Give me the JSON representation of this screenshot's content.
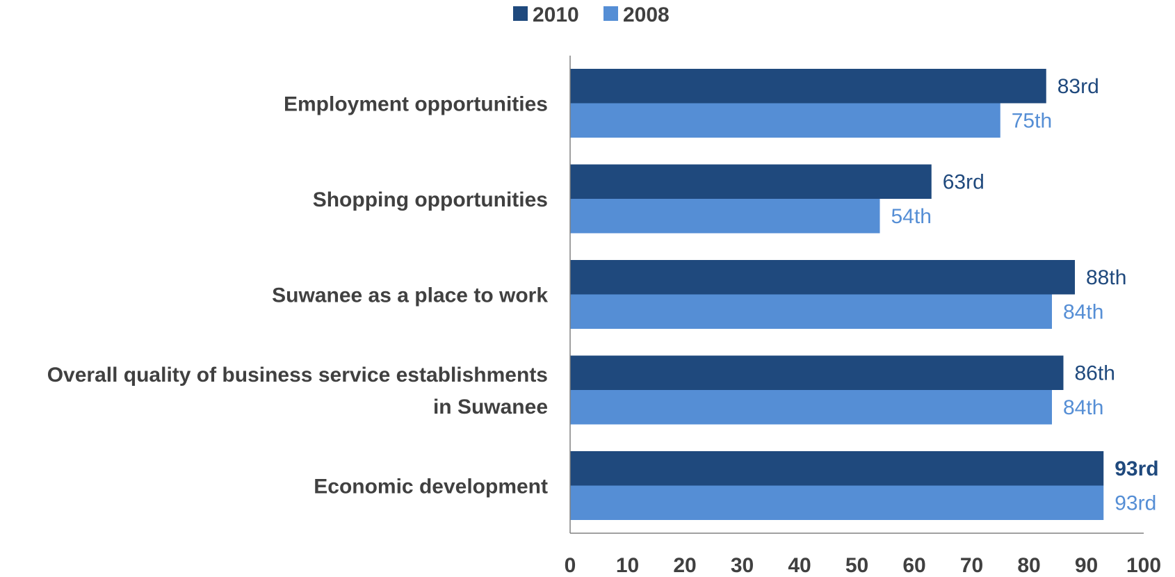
{
  "chart_data": {
    "type": "bar",
    "orientation": "horizontal",
    "categories": [
      "Employment opportunities",
      "Shopping opportunities",
      "Suwanee as a place to work",
      "Overall quality of business service  establishments in Suwanee",
      "Economic development"
    ],
    "category_lines": [
      [
        "Employment opportunities"
      ],
      [
        "Shopping opportunities"
      ],
      [
        "Suwanee as a place to work"
      ],
      [
        "Overall quality of business service  establishments",
        "in Suwanee"
      ],
      [
        "Economic development"
      ]
    ],
    "series": [
      {
        "name": "2010",
        "color": "#1f497d",
        "values": [
          83,
          63,
          88,
          86,
          93
        ],
        "labels": [
          "83rd",
          "63rd",
          "88th",
          "86th",
          "93rd"
        ],
        "bold_labels": [
          false,
          false,
          false,
          false,
          true
        ]
      },
      {
        "name": "2008",
        "color": "#558ed5",
        "values": [
          75,
          54,
          84,
          84,
          93
        ],
        "labels": [
          "75th",
          "54th",
          "84th",
          "84th",
          "93rd"
        ],
        "bold_labels": [
          false,
          false,
          false,
          false,
          false
        ]
      }
    ],
    "xlim": [
      0,
      100
    ],
    "xticks": [
      "0",
      "10",
      "20",
      "30",
      "40",
      "50",
      "60",
      "70",
      "80",
      "90",
      "100"
    ],
    "legend_position": "top",
    "grid": false
  }
}
